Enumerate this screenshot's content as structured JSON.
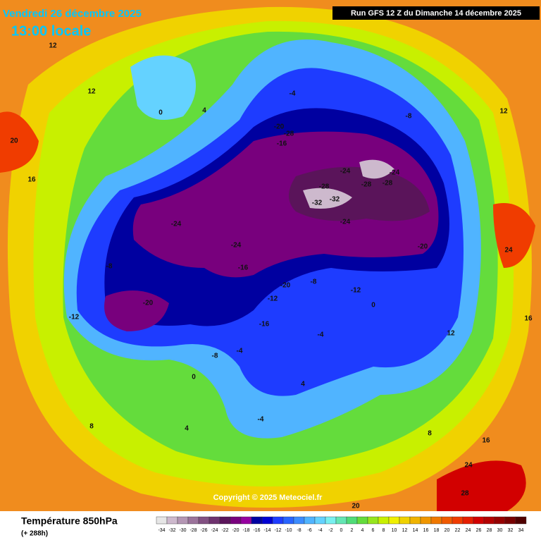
{
  "header": {
    "date": "Vendredi 26 décembre 2025",
    "time": "13:00 locale",
    "run": "Run GFS 12 Z du Dimanche 14 décembre 2025"
  },
  "copyright": "Copyright © 2025 Meteociel.fr",
  "legend": {
    "title": "Température 850hPa",
    "subtitle": "(+ 288h)",
    "ticks": [
      -34,
      -32,
      -30,
      -28,
      -26,
      -24,
      -22,
      -20,
      -18,
      -16,
      -14,
      -12,
      -10,
      -8,
      -6,
      -4,
      -2,
      0,
      2,
      4,
      6,
      8,
      10,
      12,
      14,
      16,
      18,
      20,
      22,
      24,
      26,
      28,
      30,
      32,
      34
    ],
    "colors": [
      "#e6e6e6",
      "#cdb9cd",
      "#b496b4",
      "#9b739b",
      "#825082",
      "#6e326e",
      "#5a145a",
      "#78007d",
      "#9600a0",
      "#0000a0",
      "#0000d2",
      "#1e3cff",
      "#2864ff",
      "#3c8cff",
      "#50b4ff",
      "#64d2ff",
      "#78f0f0",
      "#64e6b4",
      "#50dc78",
      "#64dc3c",
      "#96e61e",
      "#c8f000",
      "#f0f000",
      "#f0d200",
      "#f0b400",
      "#f09600",
      "#f07800",
      "#f05a00",
      "#f03c00",
      "#e61e00",
      "#d20000",
      "#b40000",
      "#960000",
      "#780000",
      "#500000"
    ]
  },
  "contour_labels": [
    -32,
    -32,
    -28,
    -28,
    -28,
    -28,
    -24,
    -24,
    -24,
    -24,
    -24,
    -20,
    -20,
    -20,
    -20,
    -16,
    -16,
    -16,
    -12,
    -12,
    -12,
    -8,
    -8,
    -8,
    -8,
    -4,
    -4,
    -4,
    -4,
    0,
    0,
    0,
    4,
    4,
    4,
    8,
    8,
    12,
    12,
    12,
    12,
    16,
    16,
    16,
    20,
    20,
    24,
    24,
    28
  ]
}
